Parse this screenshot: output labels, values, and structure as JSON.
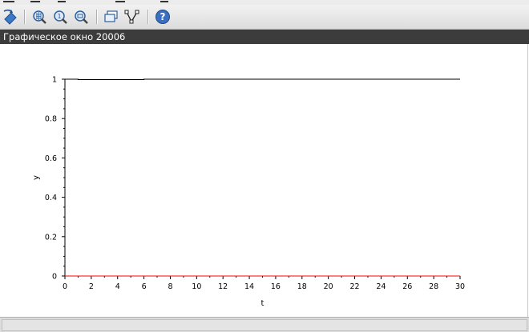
{
  "window": {
    "title": "Графическое окно 20006"
  },
  "toolbar": {
    "buttons": [
      {
        "icon": "rotate-icon"
      },
      {
        "icon": "zoom-grid-icon"
      },
      {
        "icon": "zoom-in-icon"
      },
      {
        "icon": "zoom-out-icon"
      },
      {
        "icon": "datatip-icon"
      },
      {
        "icon": "edit-curve-icon"
      },
      {
        "icon": "help-icon"
      }
    ]
  },
  "chart_data": {
    "type": "line",
    "xlabel": "t",
    "ylabel": "y",
    "xlim": [
      0,
      30
    ],
    "ylim": [
      0,
      1
    ],
    "x_ticks": [
      0,
      2,
      4,
      6,
      8,
      10,
      12,
      14,
      16,
      18,
      20,
      22,
      24,
      26,
      28,
      30
    ],
    "y_ticks": [
      0,
      0.2,
      0.4,
      0.6,
      0.8,
      1
    ],
    "grid": false,
    "series": [
      {
        "color": "#000000",
        "x": [
          0,
          1,
          1,
          6,
          6,
          30
        ],
        "y": [
          1,
          1,
          0.998,
          0.998,
          1,
          1
        ]
      },
      {
        "color": "#ff0000",
        "x": [
          0,
          30
        ],
        "y": [
          0,
          0
        ]
      }
    ]
  }
}
